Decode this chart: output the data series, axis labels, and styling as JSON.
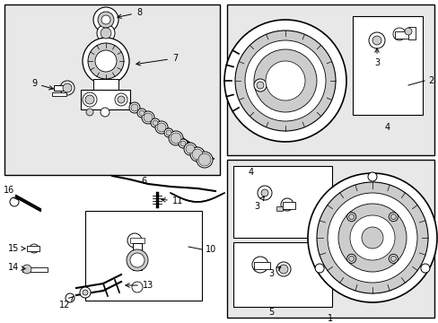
{
  "bg": "#ffffff",
  "gray_fill": "#e8e8e8",
  "white": "#ffffff",
  "black": "#000000",
  "lt_gray": "#cccccc",
  "med_gray": "#aaaaaa",
  "dk_gray": "#666666",
  "figsize": [
    4.89,
    3.6
  ],
  "dpi": 100,
  "fs": 7,
  "fs_small": 6
}
